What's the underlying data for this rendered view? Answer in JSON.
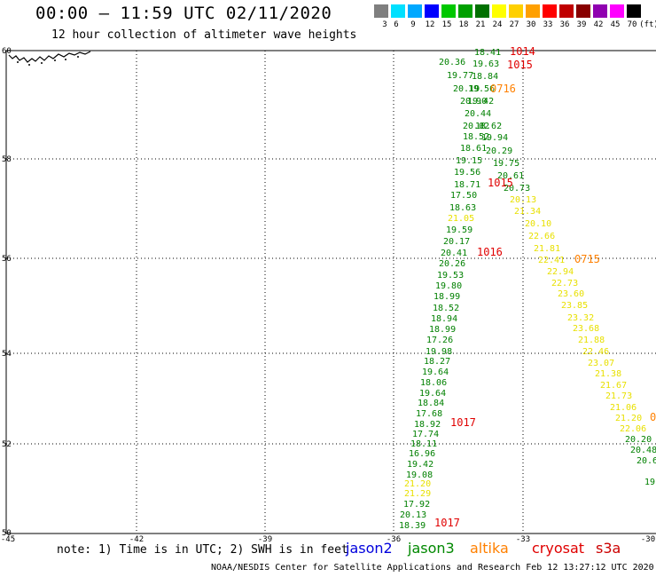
{
  "title": "00:00 – 11:59 UTC 02/11/2020",
  "subtitle": "12 hour collection of altimeter wave heights",
  "legend": {
    "unit_label": "(ft)",
    "bins": [
      {
        "label": "3",
        "color": "#7f7f7f"
      },
      {
        "label": "6",
        "color": "#00e0ff"
      },
      {
        "label": "9",
        "color": "#00a8ff"
      },
      {
        "label": "12",
        "color": "#0000ff"
      },
      {
        "label": "15",
        "color": "#00c800"
      },
      {
        "label": "18",
        "color": "#00a000"
      },
      {
        "label": "21",
        "color": "#007000"
      },
      {
        "label": "24",
        "color": "#ffff00"
      },
      {
        "label": "27",
        "color": "#ffd000"
      },
      {
        "label": "30",
        "color": "#ffa000"
      },
      {
        "label": "33",
        "color": "#ff0000"
      },
      {
        "label": "36",
        "color": "#c00000"
      },
      {
        "label": "39",
        "color": "#880000"
      },
      {
        "label": "42",
        "color": "#9000b0"
      },
      {
        "label": "45",
        "color": "#ff00ff"
      },
      {
        "label": "70",
        "color": "#000000"
      }
    ]
  },
  "colors": {
    "jason2": "#0000dd",
    "jason3": "#008800",
    "altika": "#ff8000",
    "cryosat": "#e00000",
    "s3a": "#cc0000",
    "green_value": "#008000",
    "yellow_value": "#e8e000",
    "grid": "#000000"
  },
  "axes": {
    "lat_labels": [
      "60",
      "58",
      "56",
      "54",
      "52",
      "50"
    ],
    "lon_labels": [
      "-45",
      "-42",
      "-39",
      "-36",
      "-33",
      "-30"
    ]
  },
  "chart_data": {
    "type": "scatter",
    "x_range_lon": [
      -45,
      -30
    ],
    "y_range_lat": [
      50,
      60
    ],
    "grid": true,
    "tracks": [
      {
        "name": "jason3",
        "color": "green",
        "values": [
          "18.41",
          "20.36",
          "19.63",
          "19.77",
          "18.84",
          "20.19",
          "19.56",
          "20.90",
          "19.42",
          "20.44",
          "20.02",
          "18.62",
          "18.52",
          "19.94",
          "18.61",
          "20.29",
          "19.15",
          "19.75",
          "19.56",
          "20.61",
          "18.71",
          "20.73",
          "17.50",
          "18.63",
          "19.59",
          "20.17",
          "20.41",
          "20.26",
          "19.53",
          "19.80",
          "18.99",
          "18.52",
          "18.94",
          "18.99",
          "17.26",
          "19.98",
          "18.27",
          "19.64",
          "18.06",
          "19.64",
          "18.84",
          "17.68",
          "18.92",
          "17.74",
          "18.11",
          "16.96",
          "19.42",
          "19.08",
          "17.92",
          "20.13",
          "18.39",
          "20.20",
          "20.48",
          "20.6",
          "19"
        ]
      },
      {
        "name": "jason3",
        "color": "yellow",
        "values": [
          "20.13",
          "21.34",
          "21.05",
          "20.10",
          "22.66",
          "21.81",
          "22.41",
          "22.94",
          "22.73",
          "23.60",
          "23.85",
          "23.32",
          "23.68",
          "21.88",
          "22.46",
          "23.07",
          "21.38",
          "21.67",
          "21.73",
          "21.06",
          "21.20",
          "22.06",
          "21.20",
          "21.29"
        ]
      },
      {
        "name": "cryosat",
        "values": [
          "1014",
          "1015",
          "1015",
          "1016",
          "1017",
          "1017"
        ]
      },
      {
        "name": "altika",
        "values": [
          "0716",
          "0715",
          "0"
        ]
      }
    ]
  },
  "note": "note: 1) Time is in UTC; 2) SWH is in feet",
  "satellites": [
    {
      "key": "jason2",
      "label": "jason2"
    },
    {
      "key": "jason3",
      "label": "jason3"
    },
    {
      "key": "altika",
      "label": "altika"
    },
    {
      "key": "cryosat",
      "label": "cryosat"
    },
    {
      "key": "s3a",
      "label": "s3a"
    }
  ],
  "footer": "NOAA/NESDIS Center for Satellite Applications and Research    Feb 12 13:27:12 UTC 2020"
}
